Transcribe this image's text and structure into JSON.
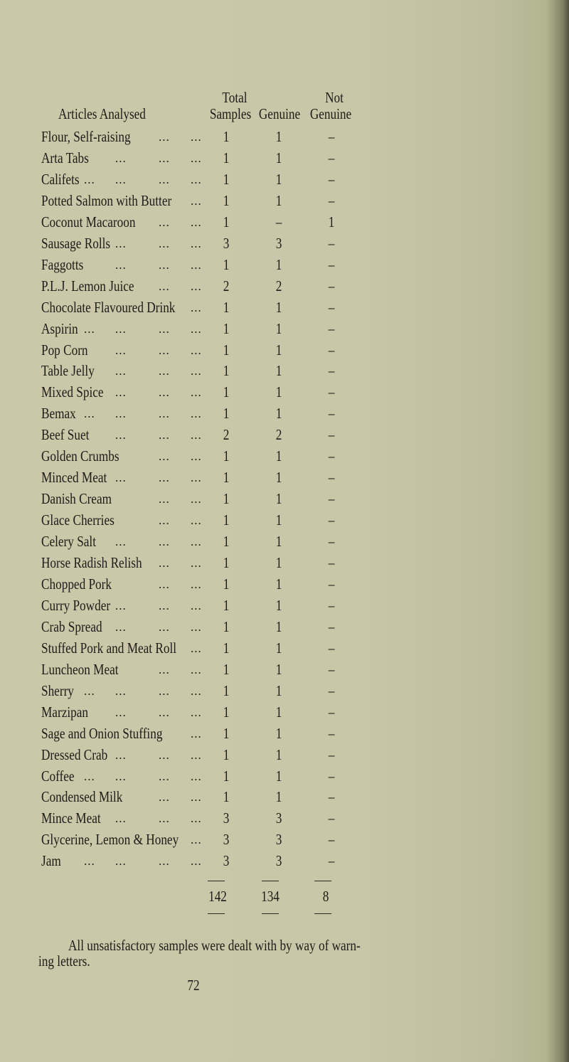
{
  "table": {
    "headers": {
      "article": "Articles Analysed",
      "total_line1": "Total",
      "total_line2": "Samples",
      "genuine": "Genuine",
      "not_genuine_line1": "Not",
      "not_genuine_line2": "Genuine"
    },
    "leader": "...",
    "rows": [
      {
        "article": "Flour, Self-raising",
        "total": "1",
        "genuine": "1",
        "not_genuine": "–"
      },
      {
        "article": "Arta Tabs",
        "total": "1",
        "genuine": "1",
        "not_genuine": "–"
      },
      {
        "article": "Califets",
        "total": "1",
        "genuine": "1",
        "not_genuine": "–"
      },
      {
        "article": "Potted Salmon with Butter",
        "total": "1",
        "genuine": "1",
        "not_genuine": "–"
      },
      {
        "article": "Coconut Macaroon",
        "total": "1",
        "genuine": "–",
        "not_genuine": "1"
      },
      {
        "article": "Sausage Rolls",
        "total": "3",
        "genuine": "3",
        "not_genuine": "–"
      },
      {
        "article": "Faggotts",
        "total": "1",
        "genuine": "1",
        "not_genuine": "–"
      },
      {
        "article": "P.L.J. Lemon Juice",
        "total": "2",
        "genuine": "2",
        "not_genuine": "–"
      },
      {
        "article": "Chocolate Flavoured Drink",
        "total": "1",
        "genuine": "1",
        "not_genuine": "–"
      },
      {
        "article": "Aspirin",
        "total": "1",
        "genuine": "1",
        "not_genuine": "–"
      },
      {
        "article": "Pop Corn",
        "total": "1",
        "genuine": "1",
        "not_genuine": "–"
      },
      {
        "article": "Table Jelly",
        "total": "1",
        "genuine": "1",
        "not_genuine": "–"
      },
      {
        "article": "Mixed Spice",
        "total": "1",
        "genuine": "1",
        "not_genuine": "–"
      },
      {
        "article": "Bemax",
        "total": "1",
        "genuine": "1",
        "not_genuine": "–"
      },
      {
        "article": "Beef Suet",
        "total": "2",
        "genuine": "2",
        "not_genuine": "–"
      },
      {
        "article": "Golden Crumbs",
        "total": "1",
        "genuine": "1",
        "not_genuine": "–"
      },
      {
        "article": "Minced Meat",
        "total": "1",
        "genuine": "1",
        "not_genuine": "–"
      },
      {
        "article": "Danish Cream",
        "total": "1",
        "genuine": "1",
        "not_genuine": "–"
      },
      {
        "article": "Glace Cherries",
        "total": "1",
        "genuine": "1",
        "not_genuine": "–"
      },
      {
        "article": "Celery Salt",
        "total": "1",
        "genuine": "1",
        "not_genuine": "–"
      },
      {
        "article": "Horse Radish Relish",
        "total": "1",
        "genuine": "1",
        "not_genuine": "–"
      },
      {
        "article": "Chopped Pork",
        "total": "1",
        "genuine": "1",
        "not_genuine": "–"
      },
      {
        "article": "Curry Powder",
        "total": "1",
        "genuine": "1",
        "not_genuine": "–"
      },
      {
        "article": "Crab Spread",
        "total": "1",
        "genuine": "1",
        "not_genuine": "–"
      },
      {
        "article": "Stuffed Pork and Meat Roll",
        "total": "1",
        "genuine": "1",
        "not_genuine": "–"
      },
      {
        "article": "Luncheon Meat",
        "total": "1",
        "genuine": "1",
        "not_genuine": "–"
      },
      {
        "article": "Sherry",
        "total": "1",
        "genuine": "1",
        "not_genuine": "–"
      },
      {
        "article": "Marzipan",
        "total": "1",
        "genuine": "1",
        "not_genuine": "–"
      },
      {
        "article": "Sage and Onion Stuffing",
        "total": "1",
        "genuine": "1",
        "not_genuine": "–"
      },
      {
        "article": "Dressed Crab",
        "total": "1",
        "genuine": "1",
        "not_genuine": "–"
      },
      {
        "article": "Coffee",
        "total": "1",
        "genuine": "1",
        "not_genuine": "–"
      },
      {
        "article": "Condensed Milk",
        "total": "1",
        "genuine": "1",
        "not_genuine": "–"
      },
      {
        "article": "Mince Meat",
        "total": "3",
        "genuine": "3",
        "not_genuine": "–"
      },
      {
        "article": "Glycerine, Lemon & Honey",
        "total": "3",
        "genuine": "3",
        "not_genuine": "–"
      },
      {
        "article": "Jam",
        "total": "3",
        "genuine": "3",
        "not_genuine": "–"
      }
    ],
    "totals": {
      "total": "142",
      "genuine": "134",
      "not_genuine": "8"
    }
  },
  "footer_note_line1": "All unsatisfactory samples were dealt with by way of warn-",
  "footer_note_line2": "ing letters.",
  "page_number": "72"
}
